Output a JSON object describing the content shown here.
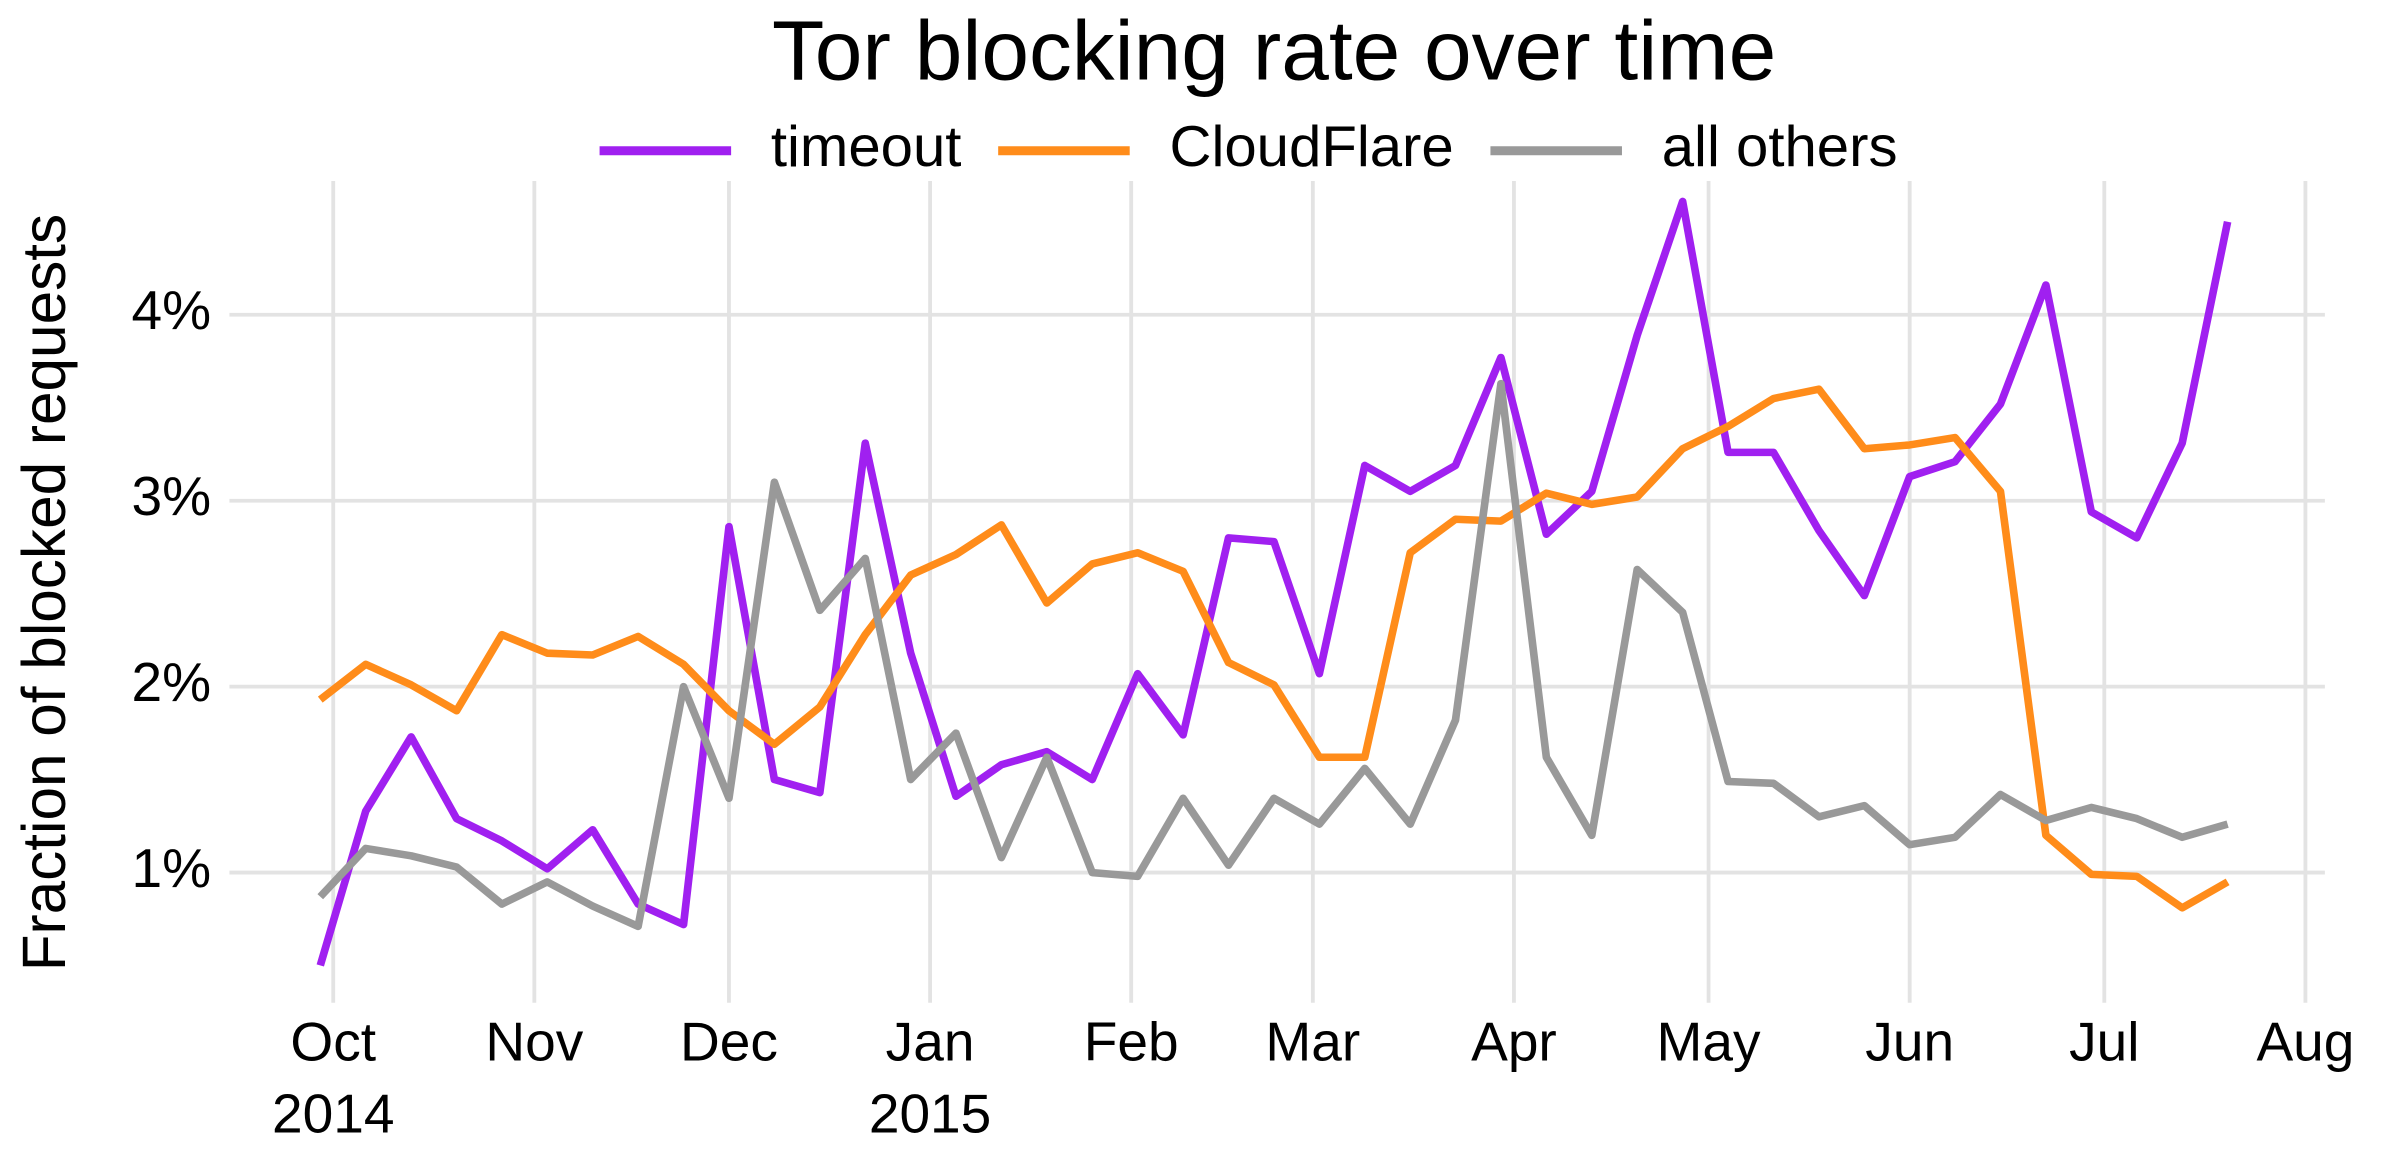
{
  "chart_data": {
    "type": "line",
    "title": "Tor blocking rate over time",
    "y_label": "Fraction of blocked requests",
    "legend_position": "top",
    "grid": true,
    "x": [
      "2014-09-29",
      "2014-10-06",
      "2014-10-13",
      "2014-10-20",
      "2014-10-27",
      "2014-11-03",
      "2014-11-10",
      "2014-11-17",
      "2014-11-24",
      "2014-12-01",
      "2014-12-08",
      "2014-12-15",
      "2014-12-22",
      "2014-12-29",
      "2015-01-05",
      "2015-01-12",
      "2015-01-19",
      "2015-01-26",
      "2015-02-02",
      "2015-02-09",
      "2015-02-16",
      "2015-02-23",
      "2015-03-02",
      "2015-03-09",
      "2015-03-16",
      "2015-03-23",
      "2015-03-30",
      "2015-04-06",
      "2015-04-13",
      "2015-04-20",
      "2015-04-27",
      "2015-05-04",
      "2015-05-11",
      "2015-05-18",
      "2015-05-25",
      "2015-06-01",
      "2015-06-08",
      "2015-06-15",
      "2015-06-22",
      "2015-06-29",
      "2015-07-06",
      "2015-07-13",
      "2015-07-20"
    ],
    "xlim": [
      "2014-09-15",
      "2015-08-04"
    ],
    "xticks": [
      {
        "value": "2014-10-01",
        "label": "Oct\n2014"
      },
      {
        "value": "2014-11-01",
        "label": "Nov"
      },
      {
        "value": "2014-12-01",
        "label": "Dec"
      },
      {
        "value": "2015-01-01",
        "label": "Jan\n2015"
      },
      {
        "value": "2015-02-01",
        "label": "Feb"
      },
      {
        "value": "2015-03-01",
        "label": "Mar"
      },
      {
        "value": "2015-04-01",
        "label": "Apr"
      },
      {
        "value": "2015-05-01",
        "label": "May"
      },
      {
        "value": "2015-06-01",
        "label": "Jun"
      },
      {
        "value": "2015-07-01",
        "label": "Jul"
      },
      {
        "value": "2015-08-01",
        "label": "Aug"
      }
    ],
    "ylim": [
      0.3,
      4.72
    ],
    "yticks": [
      {
        "value": 1,
        "label": "1%"
      },
      {
        "value": 2,
        "label": "2%"
      },
      {
        "value": 3,
        "label": "3%"
      },
      {
        "value": 4,
        "label": "4%"
      }
    ],
    "series": [
      {
        "name": "timeout",
        "color": "#a020f0",
        "values": [
          0.5,
          1.33,
          1.73,
          1.29,
          1.17,
          1.02,
          1.23,
          0.83,
          0.72,
          2.86,
          1.5,
          1.43,
          3.31,
          2.18,
          1.41,
          1.58,
          1.65,
          1.5,
          2.07,
          1.74,
          2.8,
          2.78,
          2.07,
          3.19,
          3.05,
          3.19,
          3.77,
          2.82,
          3.05,
          3.89,
          4.61,
          3.26,
          3.26,
          2.84,
          2.49,
          3.13,
          3.21,
          3.52,
          4.16,
          2.94,
          2.8,
          3.31,
          4.5
        ]
      },
      {
        "name": "CloudFlare",
        "color": "#ff8c1a",
        "values": [
          1.93,
          2.12,
          2.01,
          1.87,
          2.28,
          2.18,
          2.17,
          2.27,
          2.12,
          1.87,
          1.69,
          1.89,
          2.28,
          2.6,
          2.71,
          2.87,
          2.45,
          2.66,
          2.72,
          2.62,
          2.13,
          2.01,
          1.62,
          1.62,
          2.72,
          2.9,
          2.89,
          3.04,
          2.98,
          3.02,
          3.28,
          3.4,
          3.55,
          3.6,
          3.28,
          3.3,
          3.34,
          3.05,
          1.2,
          0.99,
          0.98,
          0.81,
          0.95
        ]
      },
      {
        "name": "all others",
        "color": "#999999",
        "values": [
          0.87,
          1.13,
          1.09,
          1.03,
          0.83,
          0.95,
          0.82,
          0.71,
          2.0,
          1.4,
          3.1,
          2.41,
          2.69,
          1.5,
          1.75,
          1.08,
          1.62,
          1.0,
          0.98,
          1.4,
          1.04,
          1.4,
          1.26,
          1.56,
          1.26,
          1.82,
          3.63,
          1.62,
          1.2,
          2.63,
          2.4,
          1.49,
          1.48,
          1.3,
          1.36,
          1.15,
          1.19,
          1.42,
          1.28,
          1.35,
          1.29,
          1.19,
          1.26
        ]
      }
    ]
  }
}
